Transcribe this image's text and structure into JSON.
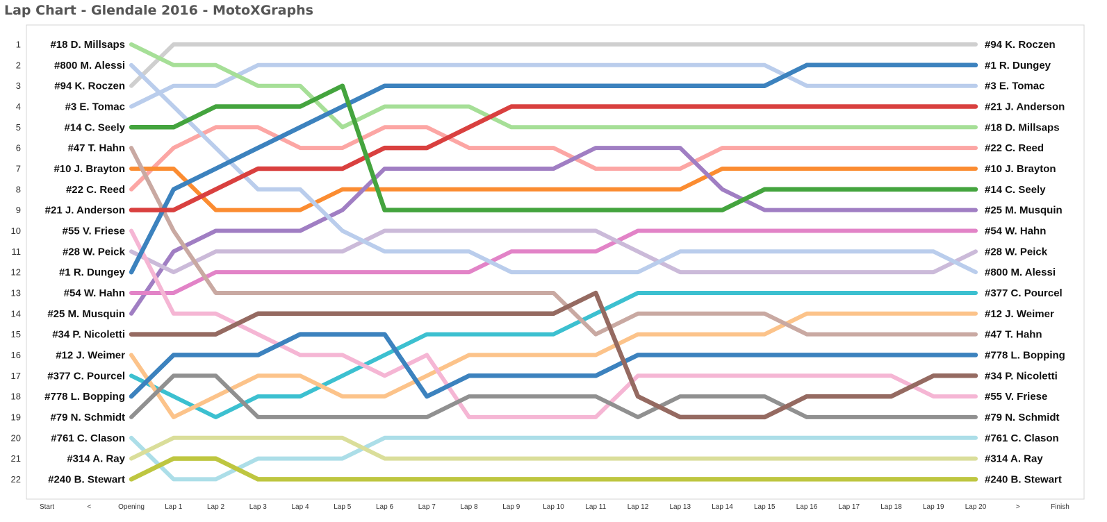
{
  "title": "Lap Chart - Glendale 2016 - MotoXGraphs",
  "chart_data": {
    "type": "line",
    "x_categories": [
      "Start",
      "<",
      "Opening",
      "Lap 1",
      "Lap 2",
      "Lap 3",
      "Lap 4",
      "Lap 5",
      "Lap 6",
      "Lap 7",
      "Lap 8",
      "Lap 9",
      "Lap 10",
      "Lap 11",
      "Lap 12",
      "Lap 13",
      "Lap 14",
      "Lap 15",
      "Lap 16",
      "Lap 17",
      "Lap 18",
      "Lap 19",
      "Lap 20",
      ">",
      "Finish"
    ],
    "data_x": [
      "Opening",
      "Lap 1",
      "Lap 2",
      "Lap 3",
      "Lap 4",
      "Lap 5",
      "Lap 6",
      "Lap 7",
      "Lap 8",
      "Lap 9",
      "Lap 10",
      "Lap 11",
      "Lap 12",
      "Lap 13",
      "Lap 14",
      "Lap 15",
      "Lap 16",
      "Lap 17",
      "Lap 18",
      "Lap 19",
      "Lap 20"
    ],
    "y_ticks": [
      1,
      2,
      3,
      4,
      5,
      6,
      7,
      8,
      9,
      10,
      11,
      12,
      13,
      14,
      15,
      16,
      17,
      18,
      19,
      20,
      21,
      22
    ],
    "y_range": [
      1,
      22
    ],
    "y_reversed": true,
    "grid": false,
    "series": [
      {
        "name": "#94 K. Roczen",
        "color": "#CFCFCF",
        "values": [
          3,
          1,
          1,
          1,
          1,
          1,
          1,
          1,
          1,
          1,
          1,
          1,
          1,
          1,
          1,
          1,
          1,
          1,
          1,
          1,
          1
        ]
      },
      {
        "name": "#1 R. Dungey",
        "color": "#3C82BE",
        "values": [
          12,
          8,
          7,
          6,
          5,
          4,
          3,
          3,
          3,
          3,
          3,
          3,
          3,
          3,
          3,
          3,
          2,
          2,
          2,
          2,
          2
        ]
      },
      {
        "name": "#3 E. Tomac",
        "color": "#BACDEC",
        "values": [
          4,
          3,
          3,
          2,
          2,
          2,
          2,
          2,
          2,
          2,
          2,
          2,
          2,
          2,
          2,
          2,
          3,
          3,
          3,
          3,
          3
        ]
      },
      {
        "name": "#21 J. Anderson",
        "color": "#D9403F",
        "values": [
          9,
          9,
          8,
          7,
          7,
          7,
          6,
          6,
          5,
          4,
          4,
          4,
          4,
          4,
          4,
          4,
          4,
          4,
          4,
          4,
          4
        ]
      },
      {
        "name": "#18 D. Millsaps",
        "color": "#A6DF97",
        "values": [
          1,
          2,
          2,
          3,
          3,
          5,
          4,
          4,
          4,
          5,
          5,
          5,
          5,
          5,
          5,
          5,
          5,
          5,
          5,
          5,
          5
        ]
      },
      {
        "name": "#22 C. Reed",
        "color": "#FCA6A4",
        "values": [
          8,
          6,
          5,
          5,
          6,
          6,
          5,
          5,
          6,
          6,
          6,
          7,
          7,
          7,
          6,
          6,
          6,
          6,
          6,
          6,
          6
        ]
      },
      {
        "name": "#10 J. Brayton",
        "color": "#FB8C31",
        "values": [
          7,
          7,
          9,
          9,
          9,
          8,
          8,
          8,
          8,
          8,
          8,
          8,
          8,
          8,
          7,
          7,
          7,
          7,
          7,
          7,
          7
        ]
      },
      {
        "name": "#14 C. Seely",
        "color": "#44A43E",
        "values": [
          5,
          5,
          4,
          4,
          4,
          3,
          9,
          9,
          9,
          9,
          9,
          9,
          9,
          9,
          9,
          8,
          8,
          8,
          8,
          8,
          8
        ]
      },
      {
        "name": "#25 M. Musquin",
        "color": "#A07EC3",
        "values": [
          14,
          11,
          10,
          10,
          10,
          9,
          7,
          7,
          7,
          7,
          7,
          6,
          6,
          6,
          8,
          9,
          9,
          9,
          9,
          9,
          9
        ]
      },
      {
        "name": "#54 W. Hahn",
        "color": "#E283C7",
        "values": [
          13,
          13,
          12,
          12,
          12,
          12,
          12,
          12,
          12,
          11,
          11,
          11,
          10,
          10,
          10,
          10,
          10,
          10,
          10,
          10,
          10
        ]
      },
      {
        "name": "#28 W. Peick",
        "color": "#CBBAD9",
        "values": [
          11,
          12,
          11,
          11,
          11,
          11,
          10,
          10,
          10,
          10,
          10,
          10,
          11,
          12,
          12,
          12,
          12,
          12,
          12,
          12,
          11
        ]
      },
      {
        "name": "#800 M. Alessi",
        "color": "#BACDEC",
        "values": [
          2,
          4,
          6,
          8,
          8,
          10,
          11,
          11,
          11,
          12,
          12,
          12,
          12,
          11,
          11,
          11,
          11,
          11,
          11,
          11,
          12
        ]
      },
      {
        "name": "#377 C. Pourcel",
        "color": "#3CC0D0",
        "values": [
          17,
          18,
          19,
          18,
          18,
          17,
          16,
          15,
          15,
          15,
          15,
          14,
          13,
          13,
          13,
          13,
          13,
          13,
          13,
          13,
          13
        ]
      },
      {
        "name": "#12 J. Weimer",
        "color": "#FCC38A",
        "values": [
          16,
          19,
          18,
          17,
          17,
          18,
          18,
          17,
          16,
          16,
          16,
          16,
          15,
          15,
          15,
          15,
          14,
          14,
          14,
          14,
          14
        ]
      },
      {
        "name": "#47 T. Hahn",
        "color": "#C9A9A2",
        "values": [
          6,
          10,
          13,
          13,
          13,
          13,
          13,
          13,
          13,
          13,
          13,
          15,
          14,
          14,
          14,
          14,
          15,
          15,
          15,
          15,
          15
        ]
      },
      {
        "name": "#778 L. Bopping",
        "color": "#3C82BE",
        "values": [
          18,
          16,
          16,
          16,
          15,
          15,
          15,
          18,
          17,
          17,
          17,
          17,
          16,
          16,
          16,
          16,
          16,
          16,
          16,
          16,
          16
        ]
      },
      {
        "name": "#34 P. Nicoletti",
        "color": "#956A61",
        "values": [
          15,
          15,
          15,
          14,
          14,
          14,
          14,
          14,
          14,
          14,
          14,
          13,
          18,
          19,
          19,
          19,
          18,
          18,
          18,
          17,
          17
        ]
      },
      {
        "name": "#55 V. Friese",
        "color": "#F5B6D4",
        "values": [
          10,
          14,
          14,
          15,
          16,
          16,
          17,
          16,
          19,
          19,
          19,
          19,
          17,
          17,
          17,
          17,
          17,
          17,
          17,
          18,
          18
        ]
      },
      {
        "name": "#79 N. Schmidt",
        "color": "#909090",
        "values": [
          19,
          17,
          17,
          19,
          19,
          19,
          19,
          19,
          18,
          18,
          18,
          18,
          19,
          18,
          18,
          18,
          19,
          19,
          19,
          19,
          19
        ]
      },
      {
        "name": "#761 C. Clason",
        "color": "#ACDEE8",
        "values": [
          20,
          22,
          22,
          21,
          21,
          21,
          20,
          20,
          20,
          20,
          20,
          20,
          20,
          20,
          20,
          20,
          20,
          20,
          20,
          20,
          20
        ]
      },
      {
        "name": "#314 A. Ray",
        "color": "#DADE9A",
        "values": [
          21,
          20,
          20,
          20,
          20,
          20,
          21,
          21,
          21,
          21,
          21,
          21,
          21,
          21,
          21,
          21,
          21,
          21,
          21,
          21,
          21
        ]
      },
      {
        "name": "#240 B. Stewart",
        "color": "#BEC640",
        "values": [
          22,
          21,
          21,
          22,
          22,
          22,
          22,
          22,
          22,
          22,
          22,
          22,
          22,
          22,
          22,
          22,
          22,
          22,
          22,
          22,
          22
        ]
      }
    ],
    "start_labels": [
      "#18 D. Millsaps",
      "#800 M. Alessi",
      "#94 K. Roczen",
      "#3 E. Tomac",
      "#14 C. Seely",
      "#47 T. Hahn",
      "#10 J. Brayton",
      "#22 C. Reed",
      "#21 J. Anderson",
      "#55 V. Friese",
      "#28 W. Peick",
      "#1 R. Dungey",
      "#54 W. Hahn",
      "#25 M. Musquin",
      "#34 P. Nicoletti",
      "#12 J. Weimer",
      "#377 C. Pourcel",
      "#778 L. Bopping",
      "#79 N. Schmidt",
      "#761 C. Clason",
      "#314 A. Ray",
      "#240 B. Stewart"
    ],
    "finish_labels": [
      "#94 K. Roczen",
      "#1 R. Dungey",
      "#3 E. Tomac",
      "#21 J. Anderson",
      "#18 D. Millsaps",
      "#22 C. Reed",
      "#10 J. Brayton",
      "#14 C. Seely",
      "#25 M. Musquin",
      "#54 W. Hahn",
      "#28 W. Peick",
      "#800 M. Alessi",
      "#377 C. Pourcel",
      "#12 J. Weimer",
      "#47 T. Hahn",
      "#778 L. Bopping",
      "#34 P. Nicoletti",
      "#55 V. Friese",
      "#79 N. Schmidt",
      "#761 C. Clason",
      "#314 A. Ray",
      "#240 B. Stewart"
    ]
  }
}
